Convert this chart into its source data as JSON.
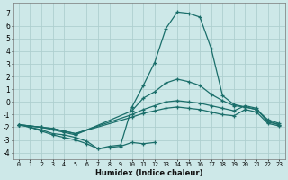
{
  "xlabel": "Humidex (Indice chaleur)",
  "bg_color": "#cde8e8",
  "grid_color": "#aecfcf",
  "line_color": "#1a6e6a",
  "xlim": [
    -0.5,
    23.5
  ],
  "ylim": [
    -4.5,
    7.8
  ],
  "yticks": [
    -4,
    -3,
    -2,
    -1,
    0,
    1,
    2,
    3,
    4,
    5,
    6,
    7
  ],
  "xticks": [
    0,
    1,
    2,
    3,
    4,
    5,
    6,
    7,
    8,
    9,
    10,
    11,
    12,
    13,
    14,
    15,
    16,
    17,
    18,
    19,
    20,
    21,
    22,
    23
  ],
  "lines": [
    {
      "x": [
        0,
        1,
        2,
        3,
        4,
        5,
        6,
        7,
        8,
        9,
        10,
        11,
        12,
        13,
        14,
        15,
        16,
        17,
        18,
        19,
        20,
        21,
        22,
        23
      ],
      "y": [
        -1.8,
        -2.0,
        -2.2,
        -2.5,
        -2.6,
        -2.8,
        -3.1,
        -3.7,
        -3.5,
        -3.4,
        -0.4,
        1.3,
        3.1,
        5.8,
        7.1,
        7.0,
        6.7,
        4.2,
        0.5,
        -0.2,
        -0.4,
        -0.6,
        -1.4,
        -1.7
      ]
    },
    {
      "x": [
        0,
        2,
        3,
        4,
        5,
        10,
        11,
        12,
        13,
        14,
        15,
        16,
        17,
        18,
        19,
        20,
        21,
        22,
        23
      ],
      "y": [
        -1.8,
        -2.0,
        -2.2,
        -2.4,
        -2.6,
        -0.7,
        0.3,
        0.8,
        1.5,
        1.8,
        1.6,
        1.3,
        0.6,
        0.1,
        -0.3,
        -0.4,
        -0.6,
        -1.5,
        -1.8
      ]
    },
    {
      "x": [
        0,
        2,
        3,
        4,
        5,
        10,
        11,
        12,
        13,
        14,
        15,
        16,
        17,
        18,
        19,
        20,
        21,
        22,
        23
      ],
      "y": [
        -1.8,
        -2.0,
        -2.1,
        -2.3,
        -2.5,
        -1.0,
        -0.6,
        -0.3,
        0.0,
        0.1,
        0.0,
        -0.1,
        -0.3,
        -0.5,
        -0.7,
        -0.3,
        -0.5,
        -1.6,
        -1.8
      ]
    },
    {
      "x": [
        0,
        2,
        3,
        4,
        5,
        10,
        11,
        12,
        13,
        14,
        15,
        16,
        17,
        18,
        19,
        20,
        21,
        22,
        23
      ],
      "y": [
        -1.8,
        -2.0,
        -2.1,
        -2.3,
        -2.5,
        -1.2,
        -0.9,
        -0.7,
        -0.5,
        -0.4,
        -0.5,
        -0.6,
        -0.8,
        -1.0,
        -1.1,
        -0.6,
        -0.8,
        -1.7,
        -1.9
      ]
    },
    {
      "x": [
        0,
        1,
        2,
        3,
        4,
        5,
        6,
        7,
        8,
        9,
        10,
        11,
        12
      ],
      "y": [
        -1.8,
        -2.0,
        -2.3,
        -2.6,
        -2.8,
        -3.0,
        -3.3,
        -3.7,
        -3.6,
        -3.5,
        -3.2,
        -3.3,
        -3.2
      ]
    }
  ]
}
